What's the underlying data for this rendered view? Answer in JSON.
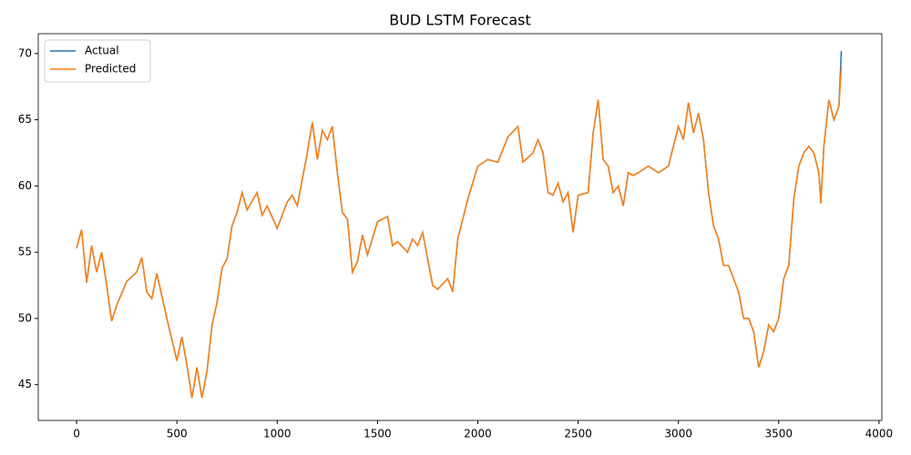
{
  "chart_data": {
    "type": "line",
    "title": "BUD LSTM Forecast",
    "x": [
      0,
      25,
      50,
      75,
      100,
      125,
      150,
      175,
      200,
      250,
      300,
      325,
      350,
      375,
      400,
      450,
      500,
      525,
      550,
      575,
      600,
      625,
      650,
      675,
      700,
      725,
      750,
      775,
      800,
      825,
      850,
      900,
      925,
      950,
      1000,
      1050,
      1075,
      1100,
      1150,
      1175,
      1200,
      1225,
      1250,
      1275,
      1300,
      1325,
      1350,
      1375,
      1400,
      1425,
      1450,
      1500,
      1550,
      1575,
      1600,
      1650,
      1675,
      1700,
      1725,
      1750,
      1775,
      1800,
      1850,
      1875,
      1900,
      1950,
      2000,
      2050,
      2100,
      2150,
      2200,
      2225,
      2275,
      2300,
      2325,
      2350,
      2375,
      2400,
      2425,
      2450,
      2475,
      2500,
      2550,
      2575,
      2600,
      2625,
      2650,
      2675,
      2700,
      2725,
      2750,
      2775,
      2800,
      2850,
      2900,
      2950,
      3000,
      3025,
      3050,
      3075,
      3100,
      3125,
      3150,
      3175,
      3200,
      3225,
      3250,
      3275,
      3300,
      3325,
      3350,
      3375,
      3400,
      3425,
      3450,
      3475,
      3500,
      3525,
      3550,
      3575,
      3600,
      3625,
      3650,
      3675,
      3700,
      3710,
      3725,
      3750,
      3775,
      3800,
      3812
    ],
    "series": [
      {
        "name": "Actual",
        "color": "#1f77b4",
        "values": [
          55.3,
          56.7,
          52.7,
          55.5,
          53.5,
          55.0,
          52.5,
          49.8,
          51.0,
          52.8,
          53.5,
          54.6,
          52.0,
          51.5,
          53.4,
          50.0,
          46.8,
          48.6,
          46.5,
          44.0,
          46.3,
          44.0,
          46.0,
          49.5,
          51.2,
          53.8,
          54.5,
          57.0,
          58.0,
          59.5,
          58.2,
          59.5,
          57.8,
          58.5,
          56.8,
          58.8,
          59.3,
          58.5,
          62.5,
          64.8,
          62.0,
          64.2,
          63.5,
          64.5,
          61.0,
          58.0,
          57.5,
          53.5,
          54.3,
          56.3,
          54.8,
          57.3,
          57.7,
          55.5,
          55.8,
          55.0,
          56.0,
          55.5,
          56.5,
          54.5,
          52.5,
          52.2,
          53.0,
          52.0,
          56.0,
          59.0,
          61.5,
          62.0,
          61.8,
          63.7,
          64.5,
          61.8,
          62.5,
          63.5,
          62.5,
          59.5,
          59.3,
          60.2,
          58.8,
          59.5,
          56.5,
          59.3,
          59.5,
          64.0,
          66.5,
          62.0,
          61.5,
          59.5,
          60.0,
          58.5,
          61.0,
          60.8,
          61.0,
          61.5,
          61.0,
          61.5,
          64.5,
          63.5,
          66.3,
          64.0,
          65.5,
          63.5,
          59.5,
          57.0,
          56.0,
          54.0,
          54.0,
          53.0,
          52.0,
          50.0,
          50.0,
          49.0,
          46.3,
          47.5,
          49.5,
          49.0,
          50.0,
          53.0,
          54.0,
          59.0,
          61.5,
          62.5,
          63.0,
          62.5,
          61.0,
          58.7,
          63.0,
          66.5,
          65.0,
          66.0,
          70.2
        ]
      },
      {
        "name": "Predicted",
        "color": "#ff7f0e",
        "values": [
          55.3,
          56.7,
          52.7,
          55.5,
          53.5,
          55.0,
          52.5,
          49.8,
          51.0,
          52.8,
          53.5,
          54.6,
          52.0,
          51.5,
          53.4,
          50.0,
          46.8,
          48.6,
          46.5,
          44.0,
          46.3,
          44.0,
          46.0,
          49.5,
          51.2,
          53.8,
          54.5,
          57.0,
          58.0,
          59.5,
          58.2,
          59.5,
          57.8,
          58.5,
          56.8,
          58.8,
          59.3,
          58.5,
          62.5,
          64.8,
          62.0,
          64.2,
          63.5,
          64.5,
          61.0,
          58.0,
          57.5,
          53.5,
          54.3,
          56.3,
          54.8,
          57.3,
          57.7,
          55.5,
          55.8,
          55.0,
          56.0,
          55.5,
          56.5,
          54.5,
          52.5,
          52.2,
          53.0,
          52.0,
          56.0,
          59.0,
          61.5,
          62.0,
          61.8,
          63.7,
          64.5,
          61.8,
          62.5,
          63.5,
          62.5,
          59.5,
          59.3,
          60.2,
          58.8,
          59.5,
          56.5,
          59.3,
          59.5,
          64.0,
          66.5,
          62.0,
          61.5,
          59.5,
          60.0,
          58.5,
          61.0,
          60.8,
          61.0,
          61.5,
          61.0,
          61.5,
          64.5,
          63.5,
          66.3,
          64.0,
          65.5,
          63.5,
          59.5,
          57.0,
          56.0,
          54.0,
          54.0,
          53.0,
          52.0,
          50.0,
          50.0,
          49.0,
          46.3,
          47.5,
          49.5,
          49.0,
          50.0,
          53.0,
          54.0,
          59.0,
          61.5,
          62.5,
          63.0,
          62.5,
          61.0,
          58.7,
          63.0,
          66.5,
          65.0,
          66.0,
          69.0
        ]
      }
    ],
    "xlim": [
      -191,
      4014
    ],
    "ylim": [
      42.3,
      71.5
    ],
    "xticks": [
      0,
      500,
      1000,
      1500,
      2000,
      2500,
      3000,
      3500,
      4000
    ],
    "yticks": [
      45,
      50,
      55,
      60,
      65,
      70
    ],
    "legend": "upper left"
  }
}
